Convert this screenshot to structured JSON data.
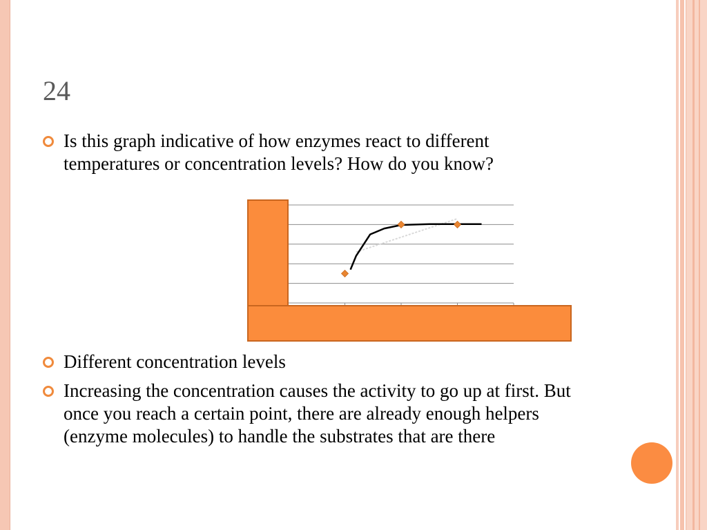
{
  "slide": {
    "number": "24",
    "bullets": [
      "Is this graph indicative of how enzymes react to different temperatures or concentration levels? How do you know?",
      "Different concentration levels",
      "Increasing the concentration causes the activity to go up at first.  But once you reach a certain point, there are already enough helpers (enzyme molecules) to handle the substrates that are there"
    ]
  },
  "colors": {
    "accent": "#f08a3c",
    "chart_cover": "#fb8c3c",
    "chart_cover_border": "#c9661f",
    "points": "#e98632",
    "curve": "#000000"
  },
  "chart_data": {
    "type": "scatter",
    "title": "",
    "xlabel": "",
    "ylabel": "",
    "x": [
      1,
      2,
      3
    ],
    "y": [
      1.5,
      4,
      4
    ],
    "xlim": [
      0,
      4
    ],
    "ylim": [
      0,
      5
    ],
    "grid": true,
    "curve": {
      "x": [
        1.1,
        1.2,
        1.45,
        1.7,
        2,
        2.5,
        3,
        3.43
      ],
      "y": [
        1.7,
        2.4,
        3.5,
        3.8,
        3.98,
        4.02,
        4.02,
        4.02
      ]
    },
    "trendline": {
      "x": [
        1.2,
        3.0
      ],
      "y": [
        2.6,
        4.3
      ]
    }
  }
}
